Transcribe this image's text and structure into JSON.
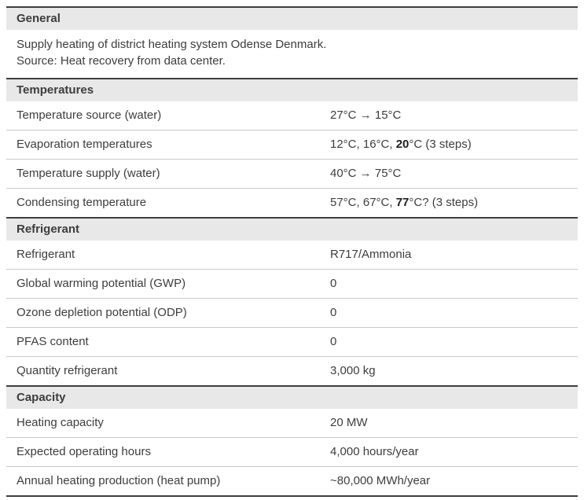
{
  "colors": {
    "header_bg": "#e8e8e8",
    "dark_line": "#3e3e3e",
    "row_border": "#c9c9c9",
    "text": "#3d3d3d"
  },
  "general": {
    "title": "General",
    "line1": "Supply heating of district heating system Odense Denmark.",
    "line2": "Source: Heat recovery from data center."
  },
  "temperatures": {
    "title": "Temperatures",
    "rows": [
      {
        "label": "Temperature source (water)",
        "value": "27°C → 15°C"
      },
      {
        "label": "Evaporation temperatures",
        "value_prefix": "12°C, 16°C, ",
        "value_bold": "20",
        "value_suffix": "°C (3 steps)"
      },
      {
        "label": "Temperature supply (water)",
        "value": "40°C → 75°C"
      },
      {
        "label": "Condensing temperature",
        "value_prefix": "57°C, 67°C, ",
        "value_bold": "77",
        "value_suffix": "°C? (3 steps)"
      }
    ]
  },
  "refrigerant": {
    "title": "Refrigerant",
    "rows": [
      {
        "label": "Refrigerant",
        "value": "R717/Ammonia"
      },
      {
        "label": "Global warming potential (GWP)",
        "value": "0"
      },
      {
        "label": "Ozone depletion potential (ODP)",
        "value": "0"
      },
      {
        "label": "PFAS content",
        "value": "0"
      },
      {
        "label": "Quantity refrigerant",
        "value": "3,000 kg"
      }
    ]
  },
  "capacity": {
    "title": "Capacity",
    "rows": [
      {
        "label": "Heating capacity",
        "value": "20 MW"
      },
      {
        "label": "Expected operating hours",
        "value": "4,000 hours/year"
      },
      {
        "label": "Annual heating production (heat pump)",
        "value": "~80,000 MWh/year"
      }
    ]
  }
}
